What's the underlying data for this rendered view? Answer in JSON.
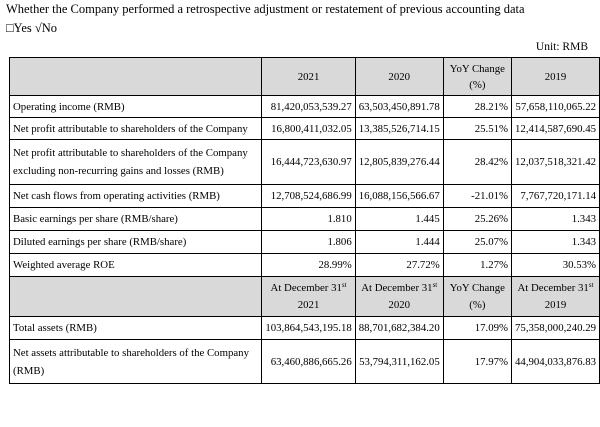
{
  "header": {
    "question": "Whether the Company performed a retrospective adjustment or restatement of previous accounting data",
    "choices": "□Yes √No",
    "unit": "Unit: RMB"
  },
  "table": {
    "header": {
      "col_2021": "2021",
      "col_2020": "2020",
      "col_yoy_line1": "YoY Change",
      "col_yoy_line2": "(%)",
      "col_2019": "2019"
    },
    "rows": [
      {
        "label": "Operating income (RMB)",
        "v2021": "81,420,053,539.27",
        "v2020": "63,503,450,891.78",
        "yoy": "28.21%",
        "v2019": "57,658,110,065.22"
      },
      {
        "label": "Net profit attributable to shareholders of the Company",
        "v2021": "16,800,411,032.05",
        "v2020": "13,385,526,714.15",
        "yoy": "25.51%",
        "v2019": "12,414,587,690.45"
      },
      {
        "label_line1": "Net profit attributable to shareholders of the Company",
        "label_line2": "excluding non-recurring gains and losses (RMB)",
        "v2021": "16,444,723,630.97",
        "v2020": "12,805,839,276.44",
        "yoy": "28.42%",
        "v2019": "12,037,518,321.42"
      },
      {
        "label": "Net cash flows from operating activities (RMB)",
        "v2021": "12,708,524,686.99",
        "v2020": "16,088,156,566.67",
        "yoy": "-21.01%",
        "v2019": "7,767,720,171.14"
      },
      {
        "label": "Basic earnings per share (RMB/share)",
        "v2021": "1.810",
        "v2020": "1.445",
        "yoy": "25.26%",
        "v2019": "1.343"
      },
      {
        "label": "Diluted earnings per share (RMB/share)",
        "v2021": "1.806",
        "v2020": "1.444",
        "yoy": "25.07%",
        "v2019": "1.343"
      },
      {
        "label": "Weighted average ROE",
        "v2021": "28.99%",
        "v2020": "27.72%",
        "yoy": "1.27%",
        "v2019": "30.53%"
      }
    ],
    "header2": {
      "col_2021_line1": "At December 31",
      "col_2021_line2": "2021",
      "col_2020_line1": "At December 31",
      "col_2020_line2": "2020",
      "col_yoy_line1": "YoY Change",
      "col_yoy_line2": "(%)",
      "col_2019_line1": "At December 31",
      "col_2019_line2": "2019",
      "sup": "st"
    },
    "rows2": [
      {
        "label": "Total assets (RMB)",
        "v2021": "103,864,543,195.18",
        "v2020": "88,701,682,384.20",
        "yoy": "17.09%",
        "v2019": "75,358,000,240.29"
      },
      {
        "label_line1": "Net assets attributable to shareholders of the Company",
        "label_line2": "(RMB)",
        "v2021": "63,460,886,665.26",
        "v2020": "53,794,311,162.05",
        "yoy": "17.97%",
        "v2019": "44,904,033,876.83"
      }
    ]
  }
}
